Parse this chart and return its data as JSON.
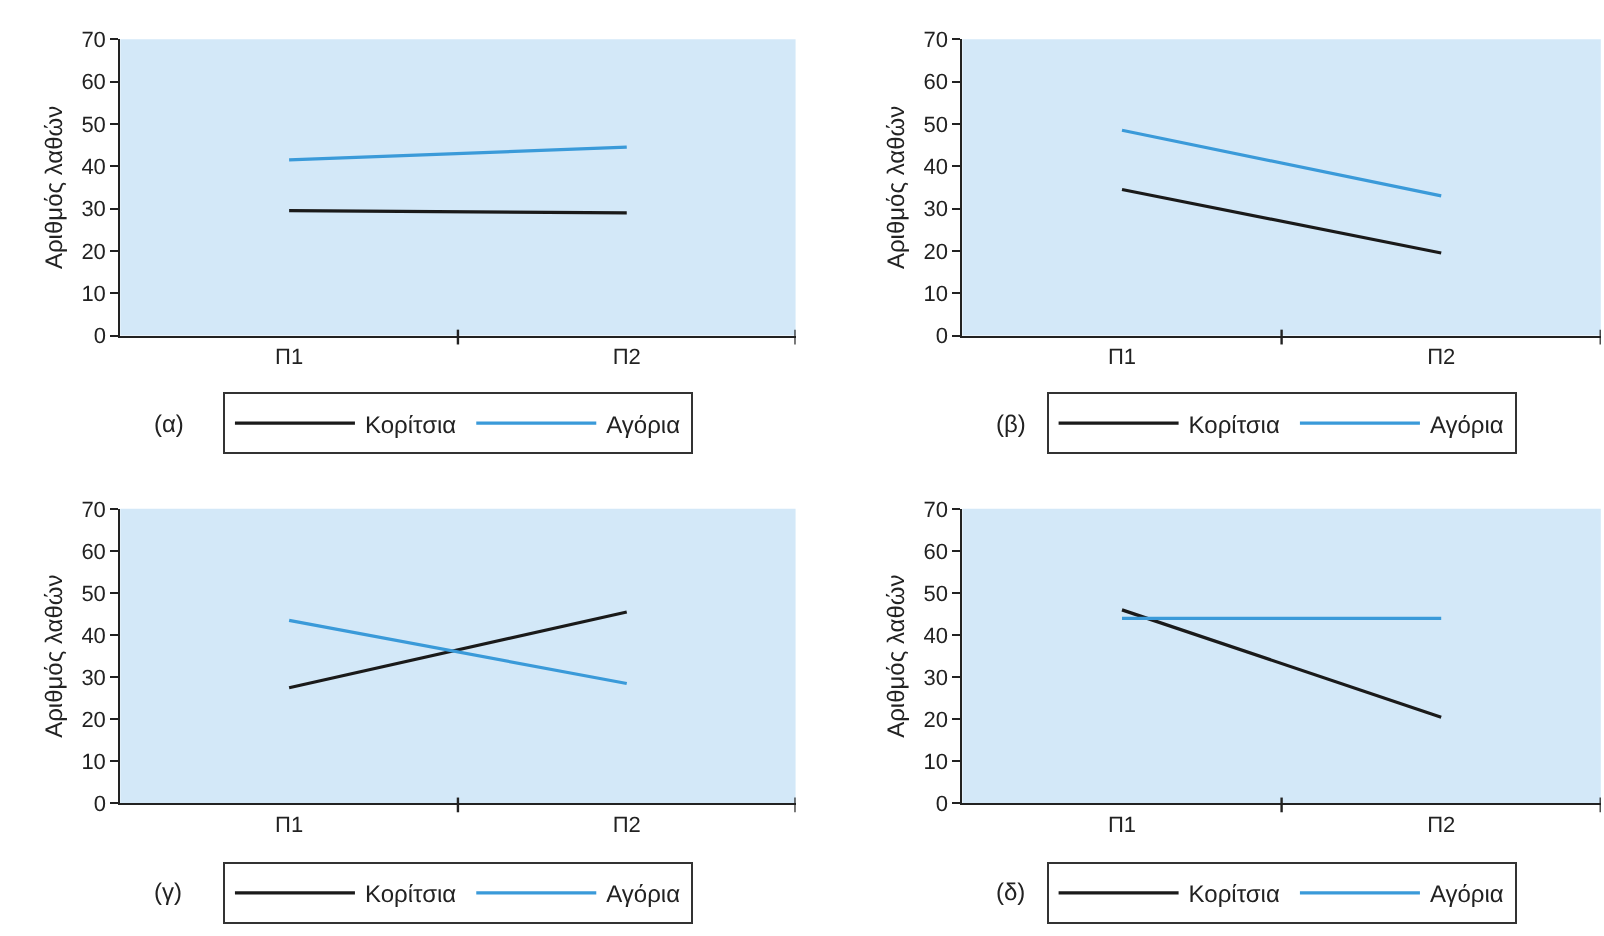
{
  "chart_data": [
    {
      "type": "line",
      "categories": [
        "Π1",
        "Π2"
      ],
      "ylabel": "Αριθμός λαθών",
      "ylim": [
        0,
        70
      ],
      "yticks": [
        0,
        10,
        20,
        30,
        40,
        50,
        60,
        70
      ],
      "grid": false,
      "legend": "bottom",
      "marker": "none",
      "annotations": [
        "(α)"
      ],
      "series": [
        {
          "name": "Κορίτσια",
          "color": "#1a1a1a",
          "values": [
            29.5,
            29
          ]
        },
        {
          "name": "Αγόρια",
          "color": "#3a9ad9",
          "values": [
            41.5,
            44.5
          ]
        }
      ]
    },
    {
      "type": "line",
      "categories": [
        "Π1",
        "Π2"
      ],
      "ylabel": "Αριθμός λαθών",
      "ylim": [
        0,
        70
      ],
      "yticks": [
        0,
        10,
        20,
        30,
        40,
        50,
        60,
        70
      ],
      "grid": false,
      "legend": "bottom",
      "marker": "none",
      "annotations": [
        "(β)"
      ],
      "series": [
        {
          "name": "Κορίτσια",
          "color": "#1a1a1a",
          "values": [
            34.5,
            19.5
          ]
        },
        {
          "name": "Αγόρια",
          "color": "#3a9ad9",
          "values": [
            48.5,
            33
          ]
        }
      ]
    },
    {
      "type": "line",
      "categories": [
        "Π1",
        "Π2"
      ],
      "ylabel": "Αριθμός λαθών",
      "ylim": [
        0,
        70
      ],
      "yticks": [
        0,
        10,
        20,
        30,
        40,
        50,
        60,
        70
      ],
      "grid": false,
      "legend": "bottom",
      "marker": "none",
      "annotations": [
        "(γ)"
      ],
      "series": [
        {
          "name": "Κορίτσια",
          "color": "#1a1a1a",
          "values": [
            27.5,
            45.5
          ]
        },
        {
          "name": "Αγόρια",
          "color": "#3a9ad9",
          "values": [
            43.5,
            28.5
          ]
        }
      ]
    },
    {
      "type": "line",
      "categories": [
        "Π1",
        "Π2"
      ],
      "ylabel": "Αριθμός λαθών",
      "ylim": [
        0,
        70
      ],
      "yticks": [
        0,
        10,
        20,
        30,
        40,
        50,
        60,
        70
      ],
      "grid": false,
      "legend": "bottom",
      "marker": "none",
      "annotations": [
        "(δ)"
      ],
      "series": [
        {
          "name": "Κορίτσια",
          "color": "#1a1a1a",
          "values": [
            46,
            20.5
          ]
        },
        {
          "name": "Αγόρια",
          "color": "#3a9ad9",
          "values": [
            44,
            44
          ]
        }
      ]
    }
  ]
}
